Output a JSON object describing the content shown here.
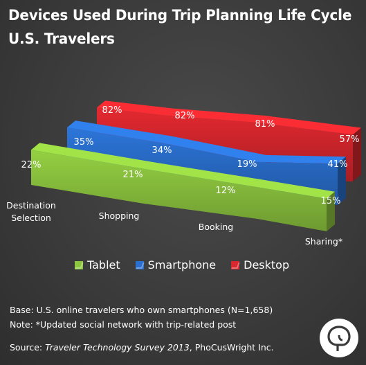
{
  "title": {
    "line1": "Devices Used During Trip Planning Life Cycle",
    "line2": "U.S. Travelers"
  },
  "chart_data": {
    "type": "area",
    "categories": [
      "Destination\nSelection",
      "Shopping",
      "Booking",
      "Sharing*"
    ],
    "series": [
      {
        "name": "Desktop",
        "values": [
          82,
          82,
          81,
          57
        ],
        "labels": [
          "82%",
          "82%",
          "81%",
          "57%"
        ],
        "color": "#d9272e"
      },
      {
        "name": "Smartphone",
        "values": [
          35,
          34,
          19,
          41
        ],
        "labels": [
          "35%",
          "34%",
          "19%",
          "41%"
        ],
        "color": "#2a6fcf"
      },
      {
        "name": "Tablet",
        "values": [
          22,
          21,
          12,
          15
        ],
        "labels": [
          "22%",
          "21%",
          "12%",
          "15%"
        ],
        "color": "#8dc63f"
      }
    ],
    "legend": [
      "Tablet",
      "Smartphone",
      "Desktop"
    ],
    "legend_position": "bottom",
    "style": "3d-ribbon"
  },
  "legend": {
    "tablet": "Tablet",
    "smartphone": "Smartphone",
    "desktop": "Desktop"
  },
  "colors": {
    "tablet": "#8dc63f",
    "smartphone": "#2a6fcf",
    "desktop": "#d9272e"
  },
  "footnotes": {
    "base": "Base: U.S. online travelers who own smartphones (N=1,658)",
    "note": "Note: *Updated social network with trip-related post",
    "source_prefix": "Source: ",
    "source_title": "Traveler Technology Survey 2013",
    "source_suffix": ", PhoCusWright Inc."
  },
  "logo_icon": "phocuswright-logo-icon"
}
